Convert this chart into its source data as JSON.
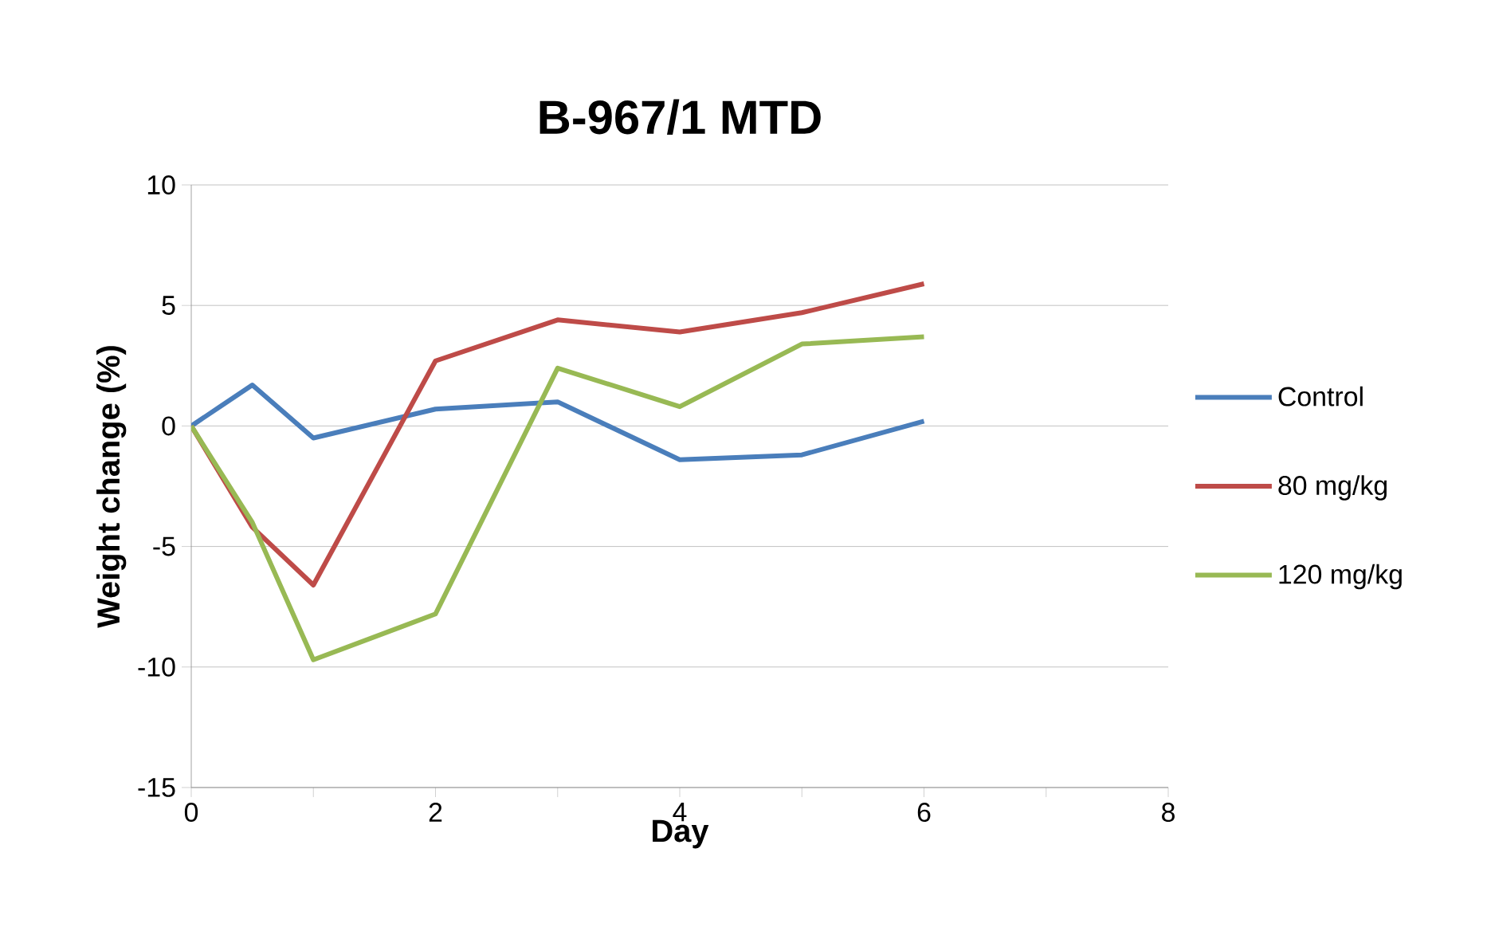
{
  "chart_data": {
    "type": "line",
    "title": "B-967/1 MTD",
    "xlabel": "Day",
    "ylabel": "Weight change (%)",
    "xlim": [
      0,
      8
    ],
    "xticks": [
      0,
      {
        "value": 1,
        "label": null
      },
      2,
      {
        "value": 3,
        "label": null
      },
      4,
      {
        "value": 5,
        "label": null
      },
      6,
      {
        "value": 7,
        "label": null
      },
      8
    ],
    "ylim": [
      -15,
      10
    ],
    "yticks": [
      -15,
      -10,
      -5,
      0,
      5,
      10
    ],
    "grid": "y",
    "legend": "right",
    "marker": "none",
    "line_style": "solid",
    "series": [
      {
        "name": "Control",
        "color": "#4a7ebb",
        "x": [
          0,
          0.5,
          1,
          2,
          3,
          4,
          5,
          6
        ],
        "values": [
          0,
          1.7,
          -0.5,
          0.7,
          1.0,
          -1.4,
          -1.2,
          0.2
        ]
      },
      {
        "name": "80 mg/kg",
        "color": "#be4b48",
        "x": [
          0,
          0.5,
          1,
          2,
          3,
          4,
          5,
          6
        ],
        "values": [
          0,
          -4.2,
          -6.6,
          2.7,
          4.4,
          3.9,
          4.7,
          5.9
        ]
      },
      {
        "name": "120 mg/kg",
        "color": "#98b954",
        "x": [
          0,
          0.5,
          1,
          2,
          3,
          4,
          5,
          6
        ],
        "values": [
          0,
          -4.0,
          -9.7,
          -7.8,
          2.4,
          0.8,
          3.4,
          3.7
        ]
      }
    ]
  }
}
